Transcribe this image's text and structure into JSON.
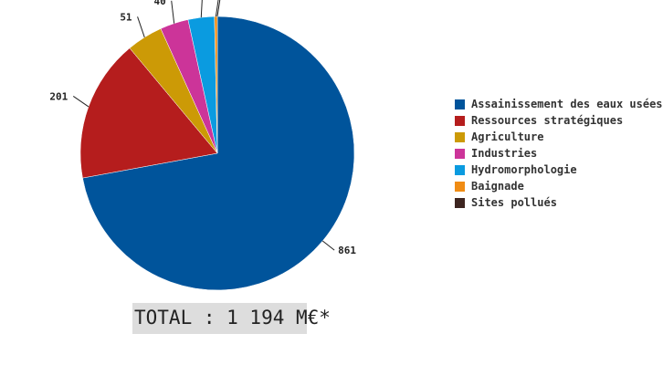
{
  "chart_data": {
    "type": "pie",
    "series": [
      {
        "name": "Assainissement des eaux usées",
        "value": 861,
        "color": "#00549b"
      },
      {
        "name": "Ressources stratégiques",
        "value": 201,
        "color": "#b51d1d"
      },
      {
        "name": "Agriculture",
        "value": 51,
        "color": "#cc9a06"
      },
      {
        "name": "Industries",
        "value": 40,
        "color": "#cc3499"
      },
      {
        "name": "Hydromorphologie",
        "value": 37,
        "color": "#0a9be0"
      },
      {
        "name": "Baignade",
        "value": 4,
        "color": "#f08c14"
      },
      {
        "name": "Sites pollués",
        "value": 0,
        "color": "#3d2520"
      }
    ],
    "legend_position": "right"
  },
  "total": "TOTAL : 1 194 M€*"
}
